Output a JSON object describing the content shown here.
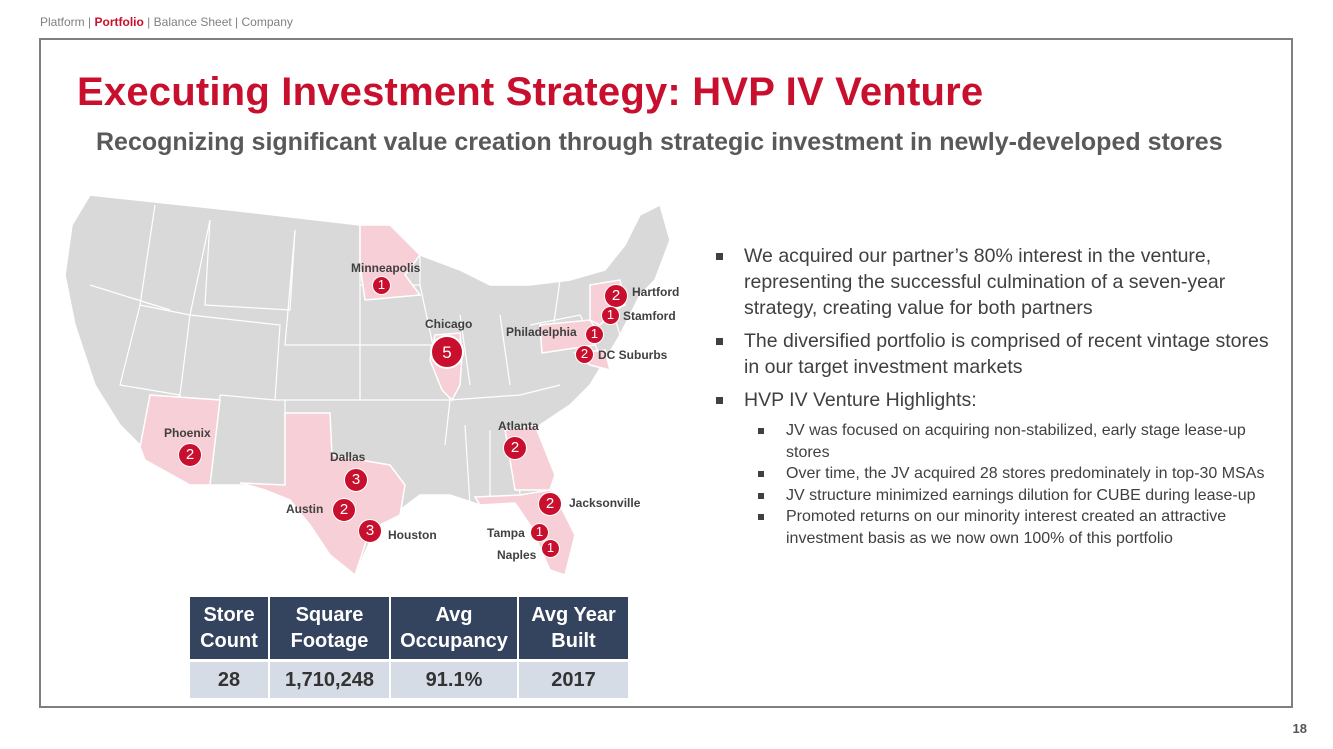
{
  "breadcrumb": {
    "items": [
      "Platform",
      "Portfolio",
      "Balance Sheet",
      "Company"
    ],
    "separator": "|",
    "active_index": 1
  },
  "title": "Executing Investment Strategy: HVP IV Venture",
  "subtitle": "Recognizing significant value creation through strategic investment in newly-developed stores",
  "map": {
    "cities": [
      {
        "name": "Minneapolis",
        "count": "1"
      },
      {
        "name": "Chicago",
        "count": "5"
      },
      {
        "name": "Philadelphia",
        "count": "1"
      },
      {
        "name": "Hartford",
        "count": "2"
      },
      {
        "name": "Stamford",
        "count": "1"
      },
      {
        "name": "DC Suburbs",
        "count": "2"
      },
      {
        "name": "Phoenix",
        "count": "2"
      },
      {
        "name": "Dallas",
        "count": "3"
      },
      {
        "name": "Austin",
        "count": "2"
      },
      {
        "name": "Houston",
        "count": "3"
      },
      {
        "name": "Atlanta",
        "count": "2"
      },
      {
        "name": "Jacksonville",
        "count": "2"
      },
      {
        "name": "Tampa",
        "count": "1"
      },
      {
        "name": "Naples",
        "count": "1"
      }
    ],
    "colors": {
      "land": "#d9d9d9",
      "highlight": "#f6d0d6",
      "badge": "#c8102e",
      "border": "#ffffff"
    }
  },
  "stats_table": {
    "headers": [
      {
        "line1": "Store",
        "line2": "Count"
      },
      {
        "line1": "Square",
        "line2": "Footage"
      },
      {
        "line1": "Avg",
        "line2": "Occupancy"
      },
      {
        "line1": "Avg Year",
        "line2": "Built"
      }
    ],
    "values": [
      "28",
      "1,710,248",
      "91.1%",
      "2017"
    ]
  },
  "bullets": {
    "main": [
      "We acquired our partner’s 80% interest in the venture, representing the successful culmination of a seven-year strategy, creating value for both partners",
      "The diversified portfolio is comprised of recent vintage stores in our target investment markets",
      "HVP IV Venture Highlights:"
    ],
    "sub": [
      "JV was focused on acquiring non-stabilized, early stage lease-up stores",
      "Over time, the JV acquired 28 stores predominately in top-30 MSAs",
      "JV structure minimized earnings dilution for CUBE during lease-up",
      "Promoted returns on our minority interest created an attractive investment basis as we now own 100% of this portfolio"
    ]
  },
  "page_number": "18",
  "colors": {
    "accent": "#c8102e",
    "table_header": "#34435e",
    "table_cell": "#d6dce5",
    "text": "#404040"
  }
}
